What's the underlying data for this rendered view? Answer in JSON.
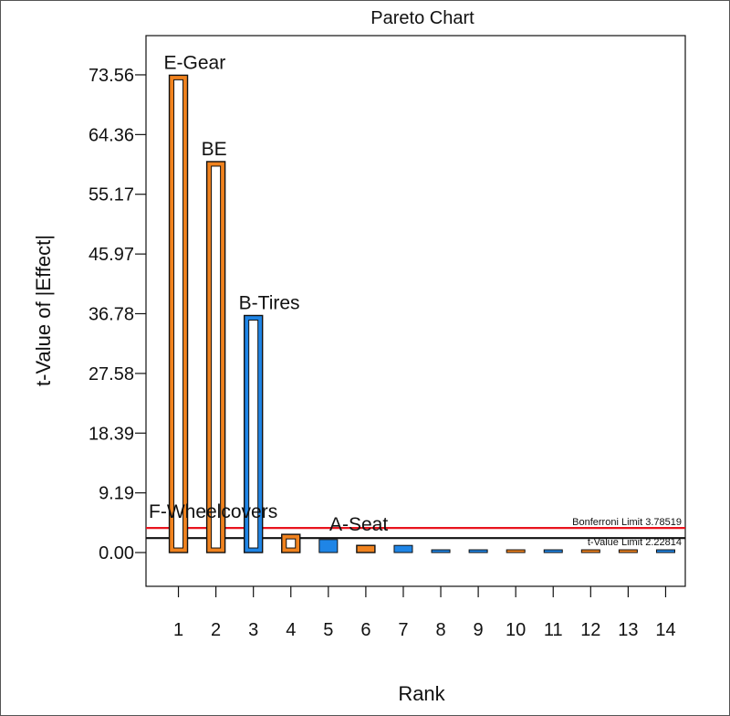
{
  "chart_data": {
    "type": "bar",
    "title": "Pareto Chart",
    "xlabel": "Rank",
    "ylabel": "t-Value of |Effect|",
    "yticks": [
      "0.00",
      "9.19",
      "18.39",
      "27.58",
      "36.78",
      "45.97",
      "55.17",
      "64.36",
      "73.56"
    ],
    "ylim": [
      -5.2,
      79.6
    ],
    "categories": [
      "1",
      "2",
      "3",
      "4",
      "5",
      "6",
      "7",
      "8",
      "9",
      "10",
      "11",
      "12",
      "13",
      "14"
    ],
    "bars": [
      {
        "rank": 1,
        "value": 73.5,
        "label": "E-Gear",
        "color": "#f0821e",
        "hollow": true
      },
      {
        "rank": 2,
        "value": 60.2,
        "label": "BE",
        "color": "#f0821e",
        "hollow": true
      },
      {
        "rank": 3,
        "value": 36.5,
        "label": "B-Tires",
        "color": "#1f85e6",
        "hollow": true
      },
      {
        "rank": 4,
        "value": 2.8,
        "label": "F-Wheelcovers",
        "color": "#f0821e",
        "hollow": true
      },
      {
        "rank": 5,
        "value": 2.0,
        "label": "",
        "color": "#1f85e6",
        "hollow": false
      },
      {
        "rank": 6,
        "value": 1.1,
        "label": "A-Seat",
        "color": "#f0821e",
        "hollow": true
      },
      {
        "rank": 7,
        "value": 1.1,
        "label": "",
        "color": "#1f85e6",
        "hollow": false
      },
      {
        "rank": 8,
        "value": 0.3,
        "label": "",
        "color": "#1f85e6",
        "hollow": false
      },
      {
        "rank": 9,
        "value": 0.3,
        "label": "",
        "color": "#1f85e6",
        "hollow": false
      },
      {
        "rank": 10,
        "value": 0.3,
        "label": "",
        "color": "#f0821e",
        "hollow": false
      },
      {
        "rank": 11,
        "value": 0.3,
        "label": "",
        "color": "#1f85e6",
        "hollow": false
      },
      {
        "rank": 12,
        "value": 0.3,
        "label": "",
        "color": "#f0821e",
        "hollow": false
      },
      {
        "rank": 13,
        "value": 0.3,
        "label": "",
        "color": "#f0821e",
        "hollow": false
      },
      {
        "rank": 14,
        "value": 0.3,
        "label": "",
        "color": "#1f85e6",
        "hollow": false
      }
    ],
    "limits": [
      {
        "name": "Bonferroni Limit 3.78519",
        "value": 3.78519,
        "color": "#e8141e"
      },
      {
        "name": "t-Value Limit 2.22814",
        "value": 2.22814,
        "color": "#111111"
      }
    ],
    "grid": false,
    "legend": "none"
  }
}
